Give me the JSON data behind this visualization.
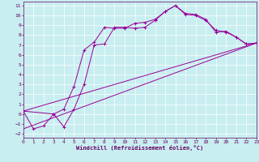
{
  "xlabel": "Windchill (Refroidissement éolien,°C)",
  "bg_color": "#c8eef0",
  "line_color": "#990099",
  "grid_color": "#ffffff",
  "xlim": [
    0,
    23
  ],
  "ylim": [
    -2.4,
    11.4
  ],
  "xticks": [
    0,
    1,
    2,
    3,
    4,
    5,
    6,
    7,
    8,
    9,
    10,
    11,
    12,
    13,
    14,
    15,
    16,
    17,
    18,
    19,
    20,
    21,
    22,
    23
  ],
  "yticks": [
    -2,
    -1,
    0,
    1,
    2,
    3,
    4,
    5,
    6,
    7,
    8,
    9,
    10,
    11
  ],
  "line1_x": [
    0,
    1,
    2,
    3,
    4,
    5,
    6,
    7,
    8,
    9,
    10,
    11,
    12,
    13,
    14,
    15,
    16,
    17,
    18,
    19,
    20,
    21,
    22,
    23
  ],
  "line1_y": [
    0.3,
    -1.5,
    -1.2,
    0.0,
    0.5,
    2.8,
    6.5,
    7.3,
    8.8,
    8.7,
    8.7,
    9.2,
    9.3,
    9.6,
    10.4,
    11.0,
    10.2,
    10.1,
    9.6,
    8.3,
    8.4,
    7.8,
    7.1,
    7.2
  ],
  "line2_x": [
    0,
    3,
    4,
    5,
    6,
    7,
    8,
    9,
    10,
    11,
    12,
    13,
    14,
    15,
    16,
    17,
    18,
    19,
    20,
    21,
    22,
    23
  ],
  "line2_y": [
    0.3,
    0.0,
    -1.3,
    0.5,
    3.0,
    7.0,
    7.1,
    8.8,
    8.8,
    8.7,
    8.8,
    9.5,
    10.4,
    11.0,
    10.1,
    10.0,
    9.5,
    8.5,
    8.3,
    7.8,
    7.1,
    7.2
  ],
  "line3_x": [
    0,
    23
  ],
  "line3_y": [
    0.3,
    7.2
  ],
  "line4_x": [
    0,
    23
  ],
  "line4_y": [
    -1.5,
    7.2
  ],
  "marker": "+"
}
